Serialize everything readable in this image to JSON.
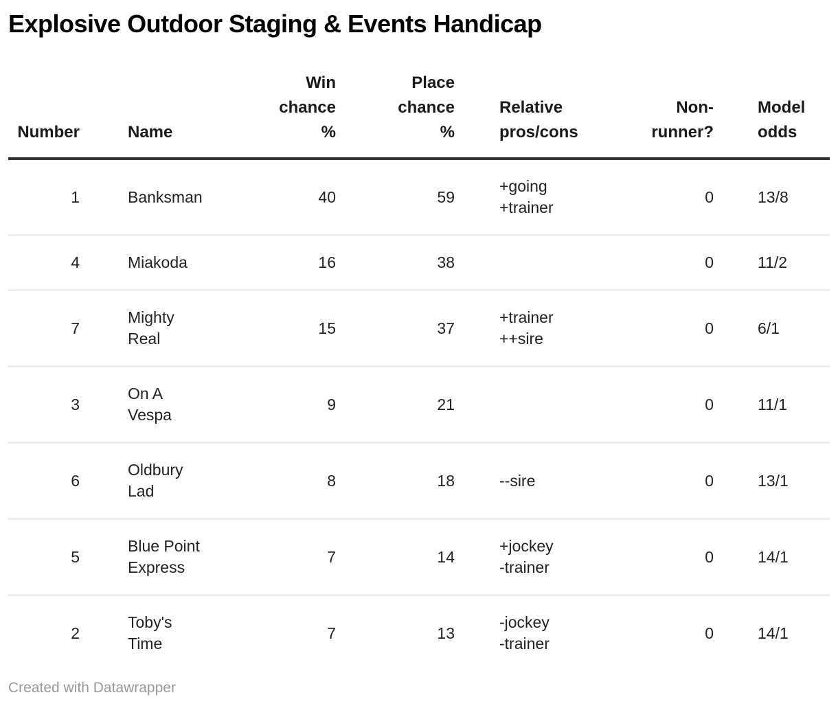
{
  "title": "Explosive Outdoor Staging & Events Handicap",
  "footer": {
    "credit": "Created with Datawrapper"
  },
  "colors": {
    "background": "#ffffff",
    "title_text": "#000000",
    "header_text": "#1a1a1a",
    "body_text": "#222222",
    "header_rule": "#333333",
    "row_rule": "#eeeeee",
    "credit_text": "#999999"
  },
  "chart_data": {
    "type": "table",
    "title": "Explosive Outdoor Staging & Events Handicap",
    "legend_position": "none",
    "grid": "horizontal-row-rules",
    "columns": [
      {
        "key": "number",
        "label": "Number",
        "align": "right"
      },
      {
        "key": "name",
        "label": "Name",
        "align": "left"
      },
      {
        "key": "win_chance",
        "label": "Win\nchance\n%",
        "align": "right"
      },
      {
        "key": "place_chance",
        "label": "Place\nchance\n%",
        "align": "right"
      },
      {
        "key": "pros_cons",
        "label": "Relative\npros/cons",
        "align": "left"
      },
      {
        "key": "non_runner",
        "label": "Non-\nrunner?",
        "align": "right"
      },
      {
        "key": "model_odds",
        "label": "Model\nodds",
        "align": "left"
      }
    ],
    "rows": [
      [
        "1",
        "Banksman",
        "40",
        "59",
        "+going\n+trainer",
        "0",
        "13/8"
      ],
      [
        "4",
        "Miakoda",
        "16",
        "38",
        "",
        "0",
        "11/2"
      ],
      [
        "7",
        "Mighty\nReal",
        "15",
        "37",
        "+trainer\n++sire",
        "0",
        "6/1"
      ],
      [
        "3",
        "On A\nVespa",
        "9",
        "21",
        "",
        "0",
        "11/1"
      ],
      [
        "6",
        "Oldbury\nLad",
        "8",
        "18",
        "--sire",
        "0",
        "13/1"
      ],
      [
        "5",
        "Blue Point\nExpress",
        "7",
        "14",
        "+jockey\n-trainer",
        "0",
        "14/1"
      ],
      [
        "2",
        "Toby's\nTime",
        "7",
        "13",
        "-jockey\n-trainer",
        "0",
        "14/1"
      ]
    ]
  }
}
